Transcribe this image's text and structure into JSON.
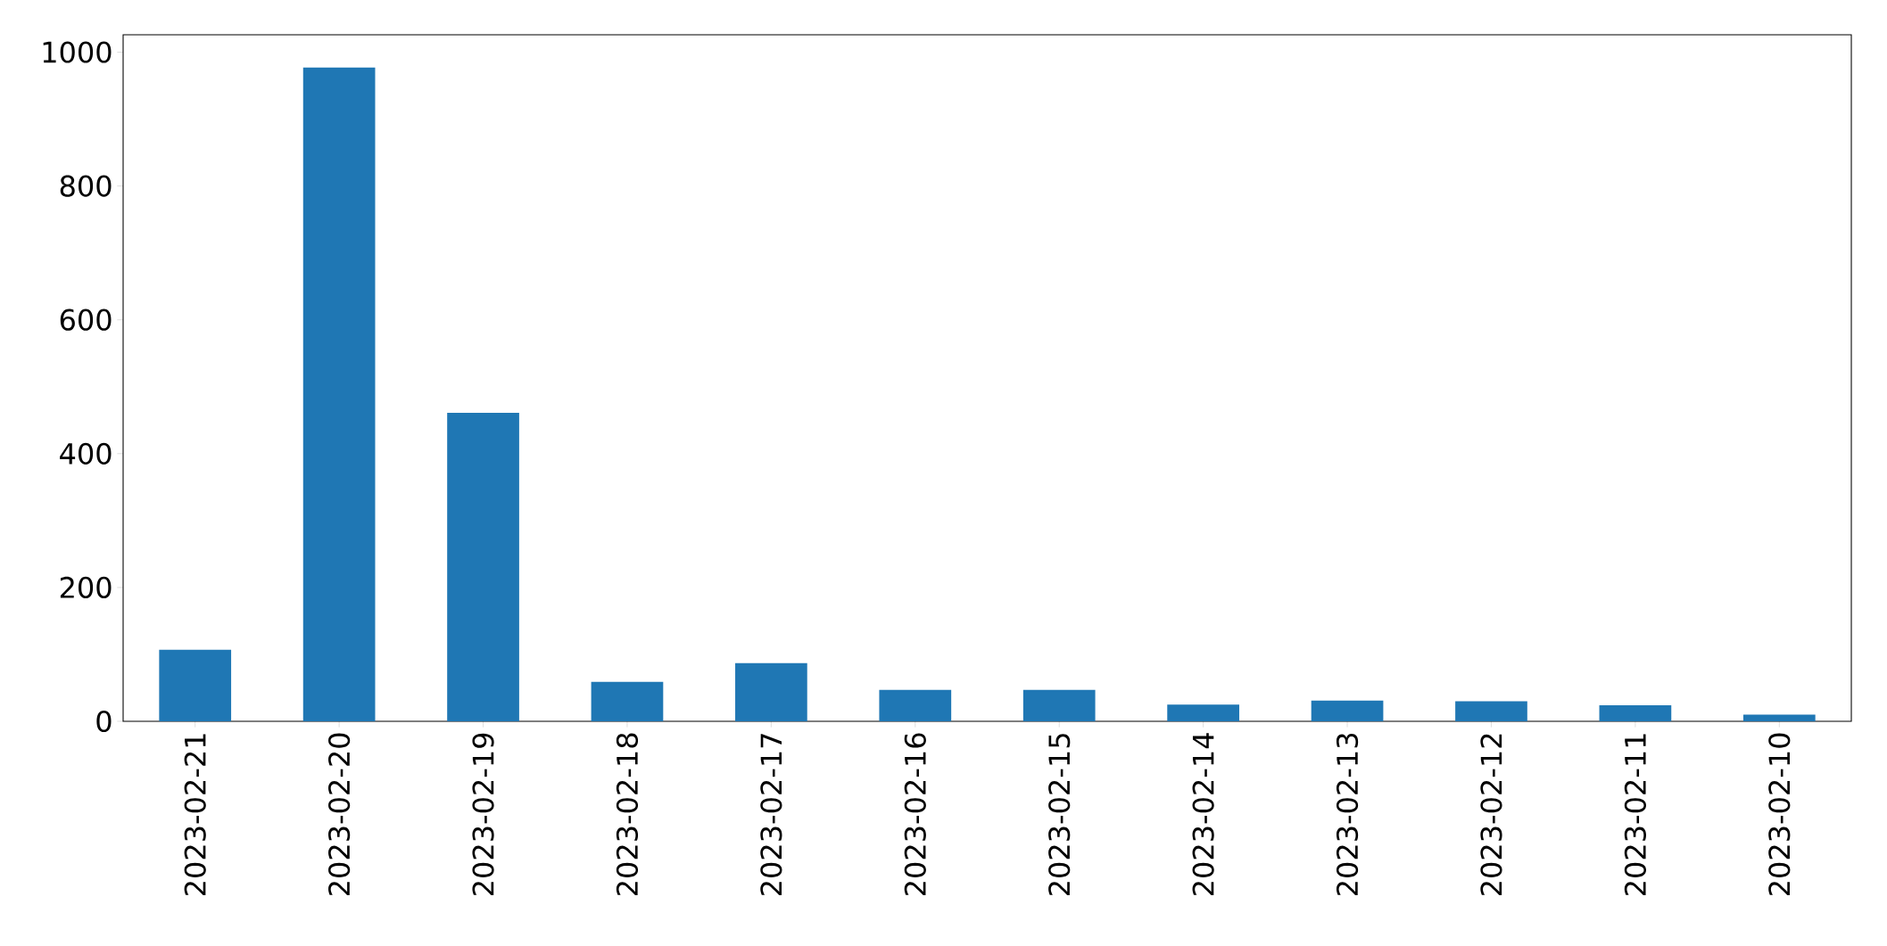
{
  "chart_data": {
    "type": "bar",
    "categories": [
      "2023-02-21",
      "2023-02-20",
      "2023-02-19",
      "2023-02-18",
      "2023-02-17",
      "2023-02-16",
      "2023-02-15",
      "2023-02-14",
      "2023-02-13",
      "2023-02-12",
      "2023-02-11",
      "2023-02-10"
    ],
    "values": [
      107,
      977,
      461,
      59,
      87,
      47,
      47,
      25,
      31,
      30,
      24,
      10
    ],
    "color": "#1f77b4",
    "ylim": [
      0,
      1026
    ],
    "yticks": [
      0,
      200,
      400,
      600,
      800,
      1000
    ],
    "grid": false
  }
}
